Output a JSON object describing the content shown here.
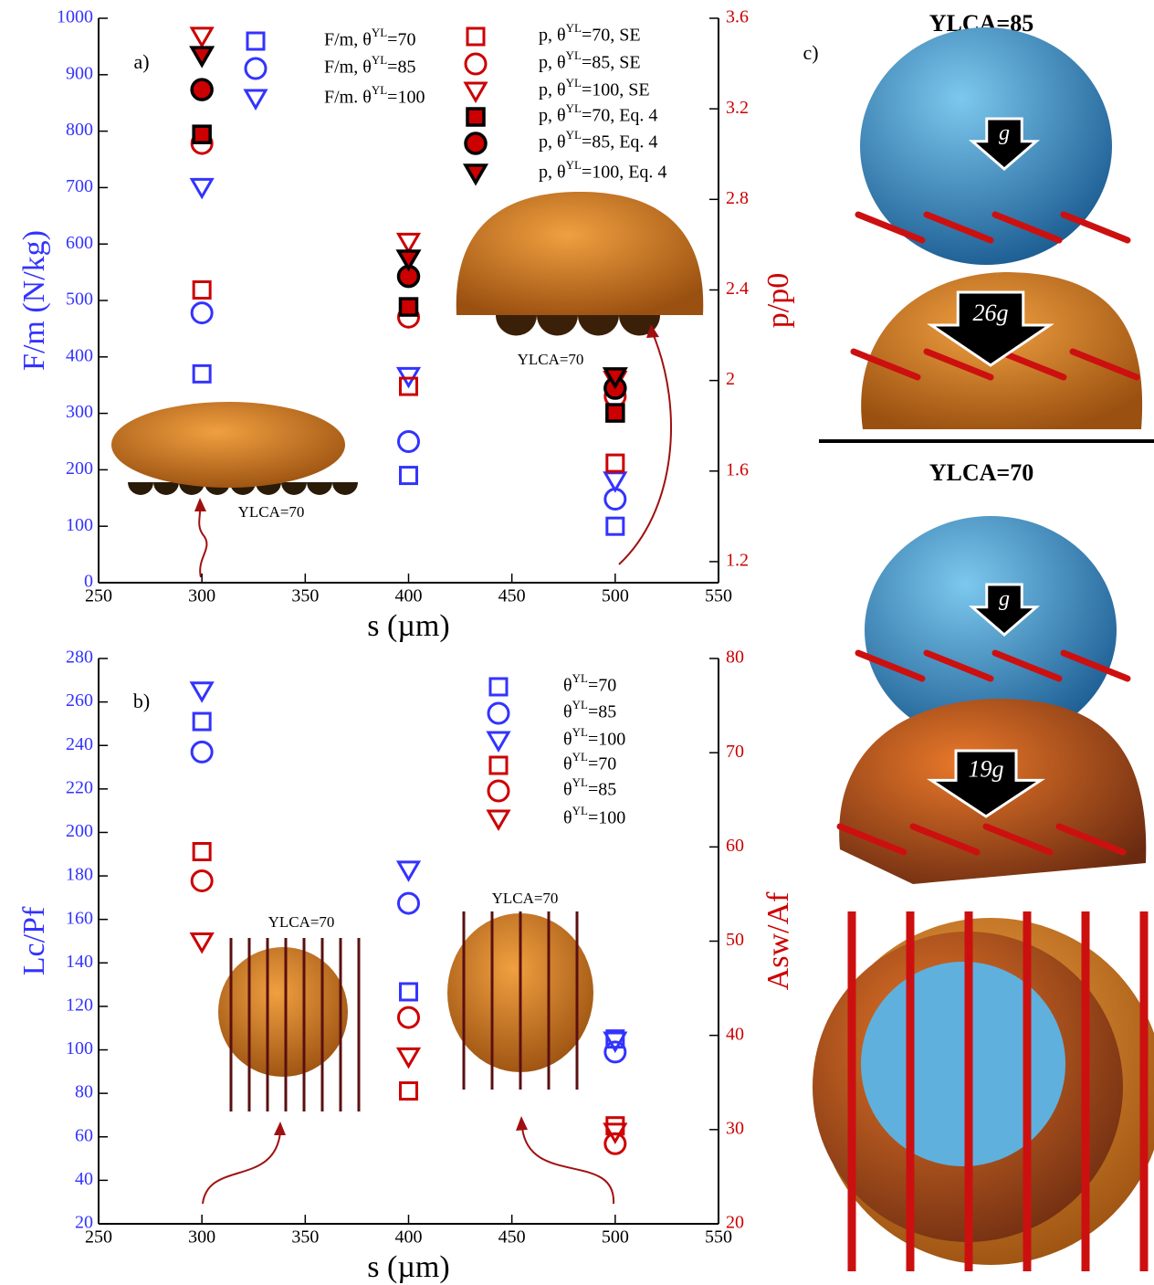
{
  "chart_data": [
    {
      "type": "scatter",
      "label": "a)",
      "x": [
        300,
        400,
        500
      ],
      "xlim": [
        250,
        550
      ],
      "xticks": [
        250,
        300,
        350,
        400,
        450,
        500,
        550
      ],
      "ylim": [
        0,
        1000
      ],
      "yticks": [
        0,
        100,
        200,
        300,
        400,
        500,
        600,
        700,
        800,
        900,
        1000
      ],
      "y2lim": [
        1.107,
        3.6
      ],
      "y2ticks": [
        1.2,
        1.6,
        2,
        2.4,
        2.8,
        3.2,
        3.6
      ],
      "xlabel": "s (µm)",
      "ylabel": "F/m (N/kg)",
      "y2label": "p/p0",
      "y_color": "#3333ff",
      "y2_color": "#cc0000",
      "annotations": [
        "YLCA=70",
        "YLCA=70"
      ],
      "series": [
        {
          "name": "F/m, θYL=70",
          "marker": "square",
          "color": "#3333ff",
          "fill": "none",
          "values": [
            370,
            190,
            100
          ]
        },
        {
          "name": "F/m, θYL=85",
          "marker": "circle",
          "color": "#3333ff",
          "fill": "none",
          "values": [
            478,
            250,
            148
          ]
        },
        {
          "name": "F/m. θYL=100",
          "marker": "triangle",
          "color": "#3333ff",
          "fill": "none",
          "values": [
            700,
            365,
            180
          ]
        },
        {
          "name": "p, θYL=70, SE",
          "marker": "square",
          "color": "#cc0000",
          "fill": "none",
          "axis": "y2",
          "values": [
            2.4,
            1.974,
            1.635
          ]
        },
        {
          "name": "p, θYL=85, SE",
          "marker": "circle",
          "color": "#cc0000",
          "fill": "none",
          "axis": "y2",
          "values": [
            3.047,
            2.28,
            1.93
          ]
        },
        {
          "name": "p, θYL=100, SE",
          "marker": "triangle",
          "color": "#cc0000",
          "fill": "none",
          "axis": "y2",
          "values": [
            3.52,
            2.61,
            2.0
          ]
        },
        {
          "name": "p, θYL=70, Eq. 4",
          "marker": "square",
          "color": "#000000",
          "fill": "#cc0000",
          "axis": "y2",
          "values": [
            3.087,
            2.325,
            1.857
          ]
        },
        {
          "name": "p, θYL=85, Eq. 4",
          "marker": "circle",
          "color": "#000000",
          "fill": "#cc0000",
          "axis": "y2",
          "values": [
            3.285,
            2.46,
            1.966
          ]
        },
        {
          "name": "p, θYL=100, Eq. 4",
          "marker": "triangle",
          "color": "#000000",
          "fill": "#cc0000",
          "axis": "y2",
          "values": [
            3.434,
            2.535,
            2.015
          ]
        }
      ]
    },
    {
      "type": "scatter",
      "label": "b)",
      "x": [
        300,
        400,
        500
      ],
      "xlim": [
        250,
        550
      ],
      "xticks": [
        250,
        300,
        350,
        400,
        450,
        500,
        550
      ],
      "ylim": [
        20,
        280
      ],
      "yticks": [
        20,
        40,
        60,
        80,
        100,
        120,
        140,
        160,
        180,
        200,
        220,
        240,
        260,
        280
      ],
      "y2lim": [
        20,
        80
      ],
      "y2ticks": [
        20,
        30,
        40,
        50,
        60,
        70,
        80
      ],
      "xlabel": "s (µm)",
      "ylabel": "Lc/Pf",
      "y2label": "Asw/Af",
      "y_color": "#3333ff",
      "y2_color": "#cc0000",
      "annotations": [
        "YLCA=70",
        "YLCA=70"
      ],
      "series": [
        {
          "name": "θYL=70",
          "marker": "square",
          "color": "#3333ff",
          "fill": "none",
          "values": [
            251,
            126.7,
            105
          ]
        },
        {
          "name": "θYL=85",
          "marker": "circle",
          "color": "#3333ff",
          "fill": "none",
          "values": [
            237,
            167.4,
            99
          ]
        },
        {
          "name": "θYL=100",
          "marker": "triangle",
          "color": "#3333ff",
          "fill": "none",
          "values": [
            265,
            182.6,
            104
          ]
        },
        {
          "name": "θYL=70",
          "marker": "square",
          "color": "#cc0000",
          "fill": "none",
          "axis": "y2",
          "values": [
            59.5,
            34.1,
            30.4
          ]
        },
        {
          "name": "θYL=85",
          "marker": "circle",
          "color": "#cc0000",
          "fill": "none",
          "axis": "y2",
          "values": [
            56.4,
            41.9,
            28.5
          ]
        },
        {
          "name": "θYL=100",
          "marker": "triangle",
          "color": "#cc0000",
          "fill": "none",
          "axis": "y2",
          "values": [
            49.9,
            37.7,
            29.7
          ]
        }
      ]
    }
  ],
  "panel_c": {
    "label": "c)",
    "sections": [
      {
        "title": "YLCA=85",
        "arrows": [
          "g",
          "26g"
        ]
      },
      {
        "title": "YLCA=70",
        "arrows": [
          "g",
          "19g"
        ]
      }
    ]
  }
}
